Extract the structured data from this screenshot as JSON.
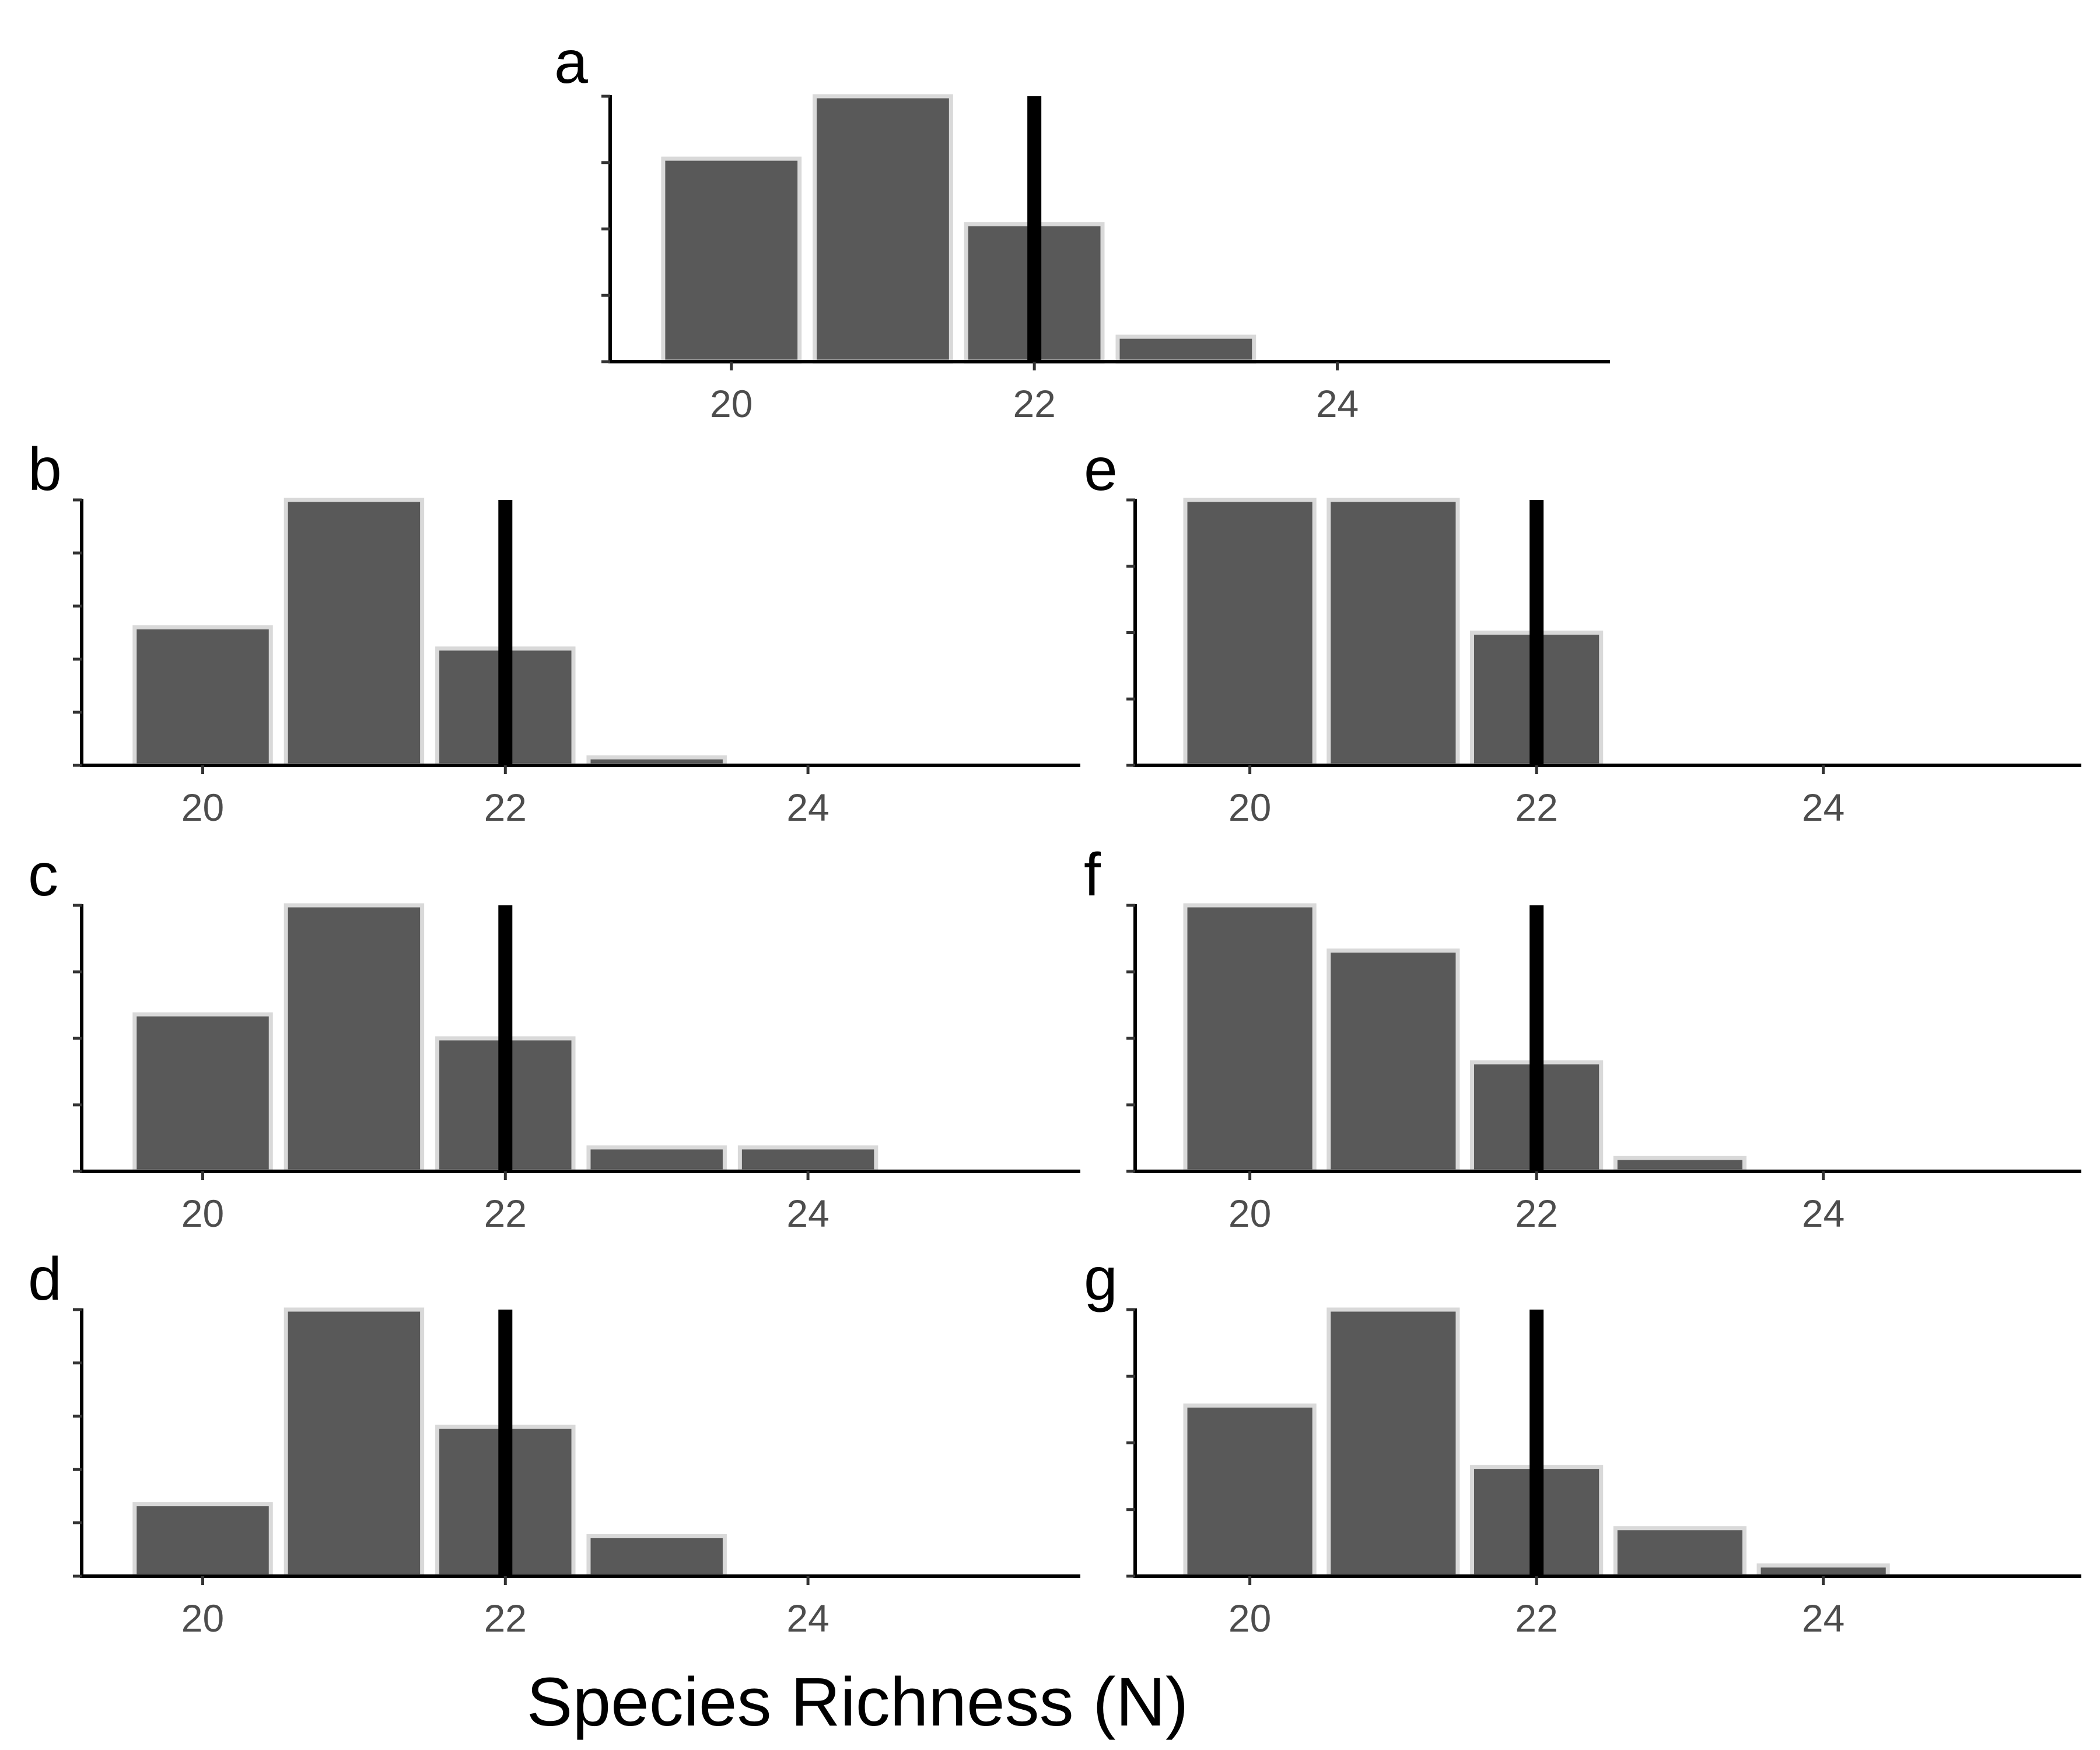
{
  "figure": {
    "xlabel": "Species Richness (N)",
    "bar_color": "#595959",
    "bar_outline_color": "#d9d9d9",
    "reference_line_color": "#000000"
  },
  "chart_data": [
    {
      "panel": "a",
      "type": "bar",
      "x": [
        20,
        21,
        22,
        23
      ],
      "values": [
        0.65,
        0.85,
        0.44,
        0.08
      ],
      "xlim": [
        19.2,
        25.8
      ],
      "ylim": [
        0,
        0.85
      ],
      "x_ticks": [
        "20",
        "22",
        "24"
      ],
      "y_tick_count": 5,
      "reference_x": 22
    },
    {
      "panel": "b",
      "type": "bar",
      "x": [
        20,
        21,
        22,
        23
      ],
      "values": [
        0.52,
        1.0,
        0.44,
        0.03
      ],
      "xlim": [
        19.2,
        25.8
      ],
      "ylim": [
        0,
        1.0
      ],
      "x_ticks": [
        "20",
        "22",
        "24"
      ],
      "y_tick_count": 6,
      "reference_x": 22
    },
    {
      "panel": "c",
      "type": "bar",
      "x": [
        20,
        21,
        22,
        23,
        24
      ],
      "values": [
        0.59,
        1.0,
        0.5,
        0.09,
        0.09
      ],
      "xlim": [
        19.2,
        25.8
      ],
      "ylim": [
        0,
        1.0
      ],
      "x_ticks": [
        "20",
        "22",
        "24"
      ],
      "y_tick_count": 5,
      "reference_x": 22
    },
    {
      "panel": "d",
      "type": "bar",
      "x": [
        20,
        21,
        22,
        23
      ],
      "values": [
        0.27,
        1.0,
        0.56,
        0.15
      ],
      "xlim": [
        19.2,
        25.8
      ],
      "ylim": [
        0,
        1.0
      ],
      "x_ticks": [
        "20",
        "22",
        "24"
      ],
      "y_tick_count": 6,
      "reference_x": 22
    },
    {
      "panel": "e",
      "type": "bar",
      "x": [
        20,
        21,
        22
      ],
      "values": [
        1.0,
        1.0,
        0.5
      ],
      "xlim": [
        19.2,
        25.8
      ],
      "ylim": [
        0,
        1.0
      ],
      "x_ticks": [
        "20",
        "22",
        "24"
      ],
      "y_tick_count": 5,
      "reference_x": 22
    },
    {
      "panel": "f",
      "type": "bar",
      "x": [
        20,
        21,
        22,
        23
      ],
      "values": [
        1.0,
        0.83,
        0.41,
        0.05
      ],
      "xlim": [
        19.2,
        25.8
      ],
      "ylim": [
        0,
        1.0
      ],
      "x_ticks": [
        "20",
        "22",
        "24"
      ],
      "y_tick_count": 5,
      "reference_x": 22
    },
    {
      "panel": "g",
      "type": "bar",
      "x": [
        20,
        21,
        22,
        23,
        24
      ],
      "values": [
        0.64,
        1.0,
        0.41,
        0.18,
        0.04
      ],
      "xlim": [
        19.2,
        25.8
      ],
      "ylim": [
        0,
        1.0
      ],
      "x_ticks": [
        "20",
        "22",
        "24"
      ],
      "y_tick_count": 5,
      "reference_x": 22
    }
  ]
}
